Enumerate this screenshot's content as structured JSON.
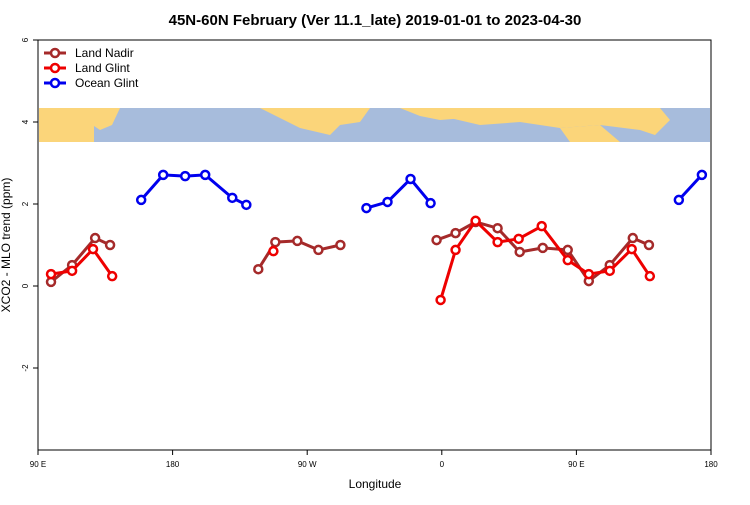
{
  "chart_data": {
    "type": "line",
    "title": "45N-60N February (Ver 11.1_late)   2019-01-01 to 2023-04-30",
    "x_label": "Longitude",
    "y_label": "XCO2 - MLO trend (ppm)",
    "xlim": [
      90,
      540
    ],
    "ylim": [
      -4,
      6
    ],
    "xticks": [
      {
        "value": 90,
        "label": "90 E"
      },
      180,
      {
        "value": 270,
        "label": "90 W"
      },
      {
        "value": 360,
        "label": "0"
      },
      {
        "value": 450,
        "label": "90 E"
      },
      {
        "value": 540,
        "label": "180"
      }
    ],
    "yticks": [
      -2,
      0,
      2,
      4,
      6
    ],
    "legend": "top-left",
    "series": [
      {
        "name": "Land Nadir",
        "color": "#a52a2a",
        "x": [
          98.7,
          112.8,
          128.2,
          138.2,
          null,
          237.3,
          248.7,
          263.4,
          277.5,
          292.2,
          null,
          356.5,
          369.2,
          382.6,
          397.3,
          412.1,
          427.5,
          444.2,
          458.3,
          472.3,
          487.7,
          498.5
        ],
        "values": [
          0.1,
          0.51,
          1.17,
          1.0,
          null,
          0.41,
          1.07,
          1.1,
          0.88,
          1.0,
          null,
          1.12,
          1.29,
          1.56,
          1.41,
          0.83,
          0.93,
          0.88,
          0.12,
          0.51,
          1.17,
          1.0
        ]
      },
      {
        "name": "Land Glint",
        "color": "#ee0000",
        "x": [
          98.7,
          112.8,
          126.8,
          139.6,
          null,
          247.4,
          null,
          359.2,
          369.2,
          382.6,
          397.3,
          411.4,
          426.8,
          444.2,
          458.3,
          472.3,
          487.0,
          499.1
        ],
        "values": [
          0.29,
          0.37,
          0.9,
          0.24,
          null,
          0.85,
          null,
          -0.34,
          0.88,
          1.59,
          1.07,
          1.15,
          1.46,
          0.63,
          0.29,
          0.37,
          0.9,
          0.24
        ]
      },
      {
        "name": "Ocean Glint",
        "color": "#0000ee",
        "x": [
          159.0,
          173.7,
          188.4,
          201.8,
          219.9,
          229.3,
          null,
          309.6,
          323.7,
          339.1,
          352.5,
          null,
          518.5,
          533.9
        ],
        "values": [
          2.1,
          2.71,
          2.68,
          2.71,
          2.15,
          1.98,
          null,
          1.9,
          2.05,
          2.61,
          2.02,
          null,
          2.1,
          2.71
        ]
      }
    ]
  }
}
